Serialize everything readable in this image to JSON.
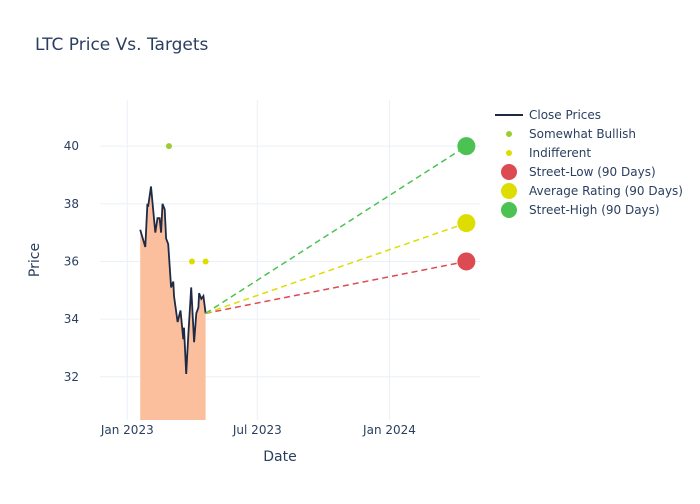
{
  "chart_data": {
    "type": "line",
    "title": "LTC Price Vs. Targets",
    "xlabel": "Date",
    "ylabel": "Price",
    "xlim": [
      "2022-11-24",
      "2024-05-06"
    ],
    "ylim": [
      30.5,
      41.6
    ],
    "x_ticks": [
      {
        "date": "2023-01-01",
        "label": "Jan 2023"
      },
      {
        "date": "2023-07-01",
        "label": "Jul 2023"
      },
      {
        "date": "2024-01-01",
        "label": "Jan 2024"
      }
    ],
    "y_ticks": [
      32,
      34,
      36,
      38,
      40
    ],
    "grid": true,
    "legend_placement": "top-right",
    "close_prices": {
      "name": "Close Prices",
      "color": "#1f2a44",
      "fill_color": "#fbbf9d",
      "x": [
        "2023-01-19",
        "2023-01-26",
        "2023-01-29",
        "2023-01-30",
        "2023-02-03",
        "2023-02-09",
        "2023-02-12",
        "2023-02-15",
        "2023-02-17",
        "2023-02-19",
        "2023-02-22",
        "2023-02-24",
        "2023-02-27",
        "2023-03-03",
        "2023-03-06",
        "2023-03-07",
        "2023-03-12",
        "2023-03-16",
        "2023-03-20",
        "2023-03-21",
        "2023-03-24",
        "2023-03-27",
        "2023-03-31",
        "2023-04-04",
        "2023-04-07",
        "2023-04-10",
        "2023-04-11",
        "2023-04-14",
        "2023-04-17",
        "2023-04-20"
      ],
      "y": [
        37.1,
        36.5,
        38.0,
        37.9,
        38.6,
        37.0,
        37.5,
        37.5,
        37.0,
        38.0,
        37.8,
        36.8,
        36.6,
        35.1,
        35.3,
        34.8,
        33.9,
        34.3,
        33.3,
        33.7,
        32.1,
        33.5,
        35.1,
        33.2,
        34.2,
        34.4,
        34.9,
        34.7,
        34.8,
        34.2
      ]
    },
    "analyst_points": [
      {
        "name": "Somewhat Bullish",
        "color": "#9acd32",
        "x": [
          "2023-02-28"
        ],
        "y": [
          40
        ]
      },
      {
        "name": "Indifferent",
        "color": "#dddd00",
        "x": [
          "2023-04-01",
          "2023-04-20"
        ],
        "y": [
          36,
          36
        ]
      }
    ],
    "targets": {
      "from": {
        "x": "2023-04-20",
        "y": 34.2
      },
      "to_date": "2024-04-17",
      "series": [
        {
          "name": "Street-Low (90 Days)",
          "color": "#dc4a52",
          "y": 36
        },
        {
          "name": "Average Rating (90 Days)",
          "color": "#dddd00",
          "y": 37.33
        },
        {
          "name": "Street-High (90 Days)",
          "color": "#4cc253",
          "y": 40
        }
      ]
    }
  }
}
